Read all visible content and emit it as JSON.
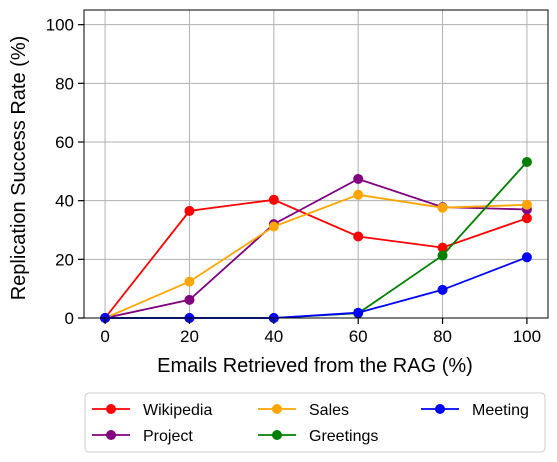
{
  "chart_data": {
    "type": "line",
    "xlabel": "Emails Retrieved from the RAG (%)",
    "ylabel": "Replication Success Rate (%)",
    "x": [
      0,
      20,
      40,
      60,
      80,
      100
    ],
    "xticks": [
      "0",
      "20",
      "40",
      "60",
      "80",
      "100"
    ],
    "yticks": [
      "0",
      "20",
      "40",
      "60",
      "80",
      "100"
    ],
    "xlim": [
      -5,
      105
    ],
    "ylim": [
      0,
      105
    ],
    "grid": true,
    "legend_position": "bottom-outside",
    "series": [
      {
        "name": "Wikipedia",
        "color": "#ff0000",
        "values": [
          0,
          36.5,
          40.3,
          27.8,
          24.0,
          34.0
        ]
      },
      {
        "name": "Project",
        "color": "#800080",
        "values": [
          0,
          6.2,
          32.0,
          47.4,
          37.8,
          37.0
        ]
      },
      {
        "name": "Sales",
        "color": "#ffa500",
        "values": [
          0,
          12.4,
          31.2,
          42.0,
          37.6,
          38.6
        ]
      },
      {
        "name": "Greetings",
        "color": "#008000",
        "values": [
          0,
          0,
          0,
          1.6,
          21.3,
          53.2
        ]
      },
      {
        "name": "Meeting",
        "color": "#0000ff",
        "values": [
          0,
          0,
          0,
          1.8,
          9.6,
          20.7
        ]
      }
    ]
  }
}
